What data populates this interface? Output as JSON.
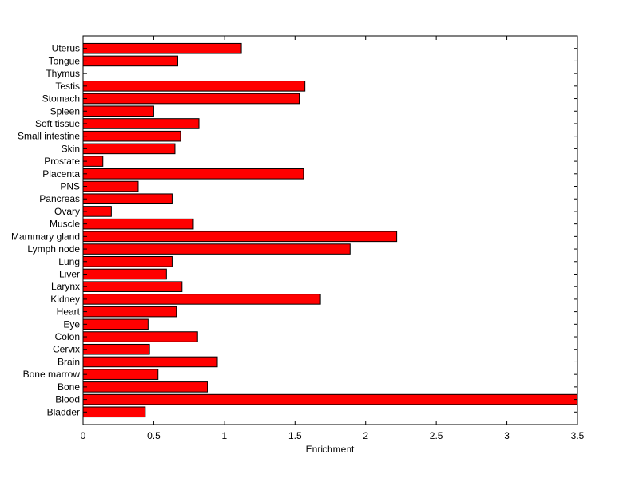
{
  "chart_data": {
    "type": "bar",
    "orientation": "horizontal",
    "title": "",
    "xlabel": "Enrichment",
    "ylabel": "",
    "xlim": [
      0,
      3.5
    ],
    "xticks": [
      0,
      0.5,
      1,
      1.5,
      2,
      2.5,
      3,
      3.5
    ],
    "xtick_labels": [
      "0",
      "0.5",
      "1",
      "1.5",
      "2",
      "2.5",
      "3",
      "3.5"
    ],
    "grid": false,
    "bar_color": "#ff0000",
    "edge_color": "#000000",
    "categories": [
      "Bladder",
      "Blood",
      "Bone",
      "Bone marrow",
      "Brain",
      "Cervix",
      "Colon",
      "Eye",
      "Heart",
      "Kidney",
      "Larynx",
      "Liver",
      "Lung",
      "Lymph node",
      "Mammary gland",
      "Muscle",
      "Ovary",
      "Pancreas",
      "PNS",
      "Placenta",
      "Prostate",
      "Skin",
      "Small intestine",
      "Soft tissue",
      "Spleen",
      "Stomach",
      "Testis",
      "Thymus",
      "Tongue",
      "Uterus"
    ],
    "values": [
      0.44,
      3.5,
      0.88,
      0.53,
      0.95,
      0.47,
      0.81,
      0.46,
      0.66,
      1.68,
      0.7,
      0.59,
      0.63,
      1.89,
      2.22,
      0.78,
      0.2,
      0.63,
      0.39,
      1.56,
      0.14,
      0.65,
      0.69,
      0.82,
      0.5,
      1.53,
      1.57,
      0.0,
      0.67,
      1.12
    ]
  }
}
